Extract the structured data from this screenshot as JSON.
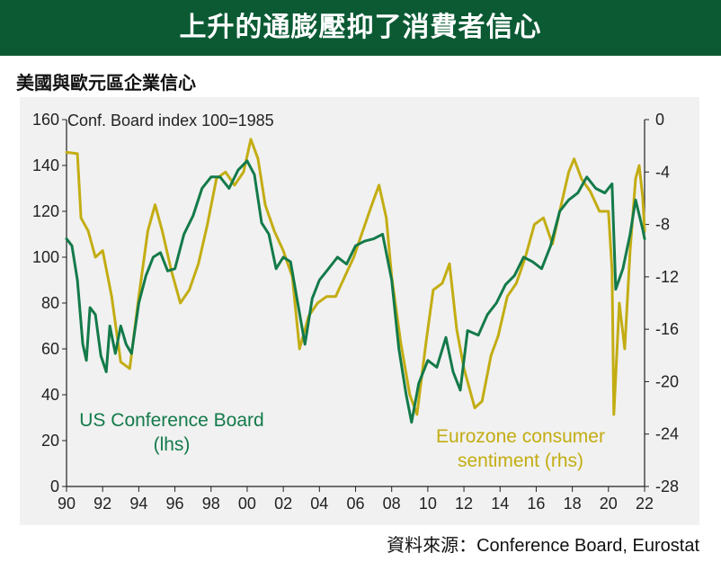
{
  "header": {
    "title": "上升的通膨壓抑了消費者信心"
  },
  "subtitle": "美國與歐元區企業信心",
  "source": "資料來源：Conference Board, Eurostat",
  "chart_data": {
    "type": "line",
    "left_axis_label": "Conf. Board index 100=1985",
    "left_axis": {
      "ylim": [
        0,
        160
      ],
      "ticks": [
        0,
        20,
        40,
        60,
        80,
        100,
        120,
        140,
        160
      ]
    },
    "right_axis": {
      "ylim": [
        -28,
        0
      ],
      "ticks": [
        0,
        -4,
        -8,
        -12,
        -16,
        -20,
        -24,
        -28
      ]
    },
    "x_axis": {
      "xlim": [
        1990,
        2022
      ],
      "ticks": [
        "90",
        "92",
        "94",
        "96",
        "98",
        "00",
        "02",
        "04",
        "06",
        "08",
        "10",
        "12",
        "14",
        "16",
        "18",
        "20",
        "22"
      ]
    },
    "series": [
      {
        "name": "US Conference Board (lhs)",
        "label_lines": [
          "US Conference Board",
          "(lhs)"
        ],
        "axis": "left",
        "color": "#137a4a",
        "points": [
          [
            1990,
            108
          ],
          [
            1990.3,
            105
          ],
          [
            1990.6,
            90
          ],
          [
            1990.9,
            62
          ],
          [
            1991.1,
            55
          ],
          [
            1991.3,
            78
          ],
          [
            1991.6,
            75
          ],
          [
            1991.9,
            57
          ],
          [
            1992.2,
            50
          ],
          [
            1992.4,
            70
          ],
          [
            1992.7,
            58
          ],
          [
            1993.0,
            70
          ],
          [
            1993.3,
            62
          ],
          [
            1993.6,
            58
          ],
          [
            1994.0,
            80
          ],
          [
            1994.4,
            92
          ],
          [
            1994.8,
            100
          ],
          [
            1995.2,
            102
          ],
          [
            1995.6,
            94
          ],
          [
            1996.0,
            95
          ],
          [
            1996.5,
            110
          ],
          [
            1997.0,
            118
          ],
          [
            1997.5,
            130
          ],
          [
            1998.0,
            135
          ],
          [
            1998.5,
            135
          ],
          [
            1999.0,
            130
          ],
          [
            1999.5,
            138
          ],
          [
            2000.0,
            142
          ],
          [
            2000.4,
            136
          ],
          [
            2000.8,
            115
          ],
          [
            2001.2,
            110
          ],
          [
            2001.6,
            95
          ],
          [
            2002.0,
            100
          ],
          [
            2002.4,
            98
          ],
          [
            2002.8,
            80
          ],
          [
            2003.2,
            62
          ],
          [
            2003.6,
            82
          ],
          [
            2004.0,
            90
          ],
          [
            2004.5,
            95
          ],
          [
            2005.0,
            100
          ],
          [
            2005.5,
            97
          ],
          [
            2006.0,
            105
          ],
          [
            2006.5,
            107
          ],
          [
            2007.0,
            108
          ],
          [
            2007.5,
            110
          ],
          [
            2008.0,
            90
          ],
          [
            2008.4,
            60
          ],
          [
            2008.8,
            40
          ],
          [
            2009.1,
            28
          ],
          [
            2009.5,
            45
          ],
          [
            2010.0,
            55
          ],
          [
            2010.5,
            52
          ],
          [
            2011.0,
            65
          ],
          [
            2011.4,
            50
          ],
          [
            2011.8,
            42
          ],
          [
            2012.2,
            68
          ],
          [
            2012.8,
            66
          ],
          [
            2013.3,
            75
          ],
          [
            2013.8,
            80
          ],
          [
            2014.3,
            88
          ],
          [
            2014.8,
            92
          ],
          [
            2015.3,
            100
          ],
          [
            2015.8,
            98
          ],
          [
            2016.3,
            95
          ],
          [
            2016.8,
            105
          ],
          [
            2017.3,
            120
          ],
          [
            2017.8,
            125
          ],
          [
            2018.3,
            128
          ],
          [
            2018.8,
            135
          ],
          [
            2019.3,
            130
          ],
          [
            2019.8,
            128
          ],
          [
            2020.2,
            132
          ],
          [
            2020.4,
            86
          ],
          [
            2020.8,
            95
          ],
          [
            2021.2,
            110
          ],
          [
            2021.5,
            125
          ],
          [
            2021.9,
            112
          ],
          [
            2022.0,
            108
          ]
        ]
      },
      {
        "name": "Eurozone consumer sentiment (rhs)",
        "label_lines": [
          "Eurozone consumer",
          "sentiment (rhs)"
        ],
        "axis": "right",
        "color": "#c3ad13",
        "points": [
          [
            1990,
            -2.5
          ],
          [
            1990.6,
            -2.6
          ],
          [
            1990.8,
            -7.5
          ],
          [
            1991.2,
            -8.5
          ],
          [
            1991.6,
            -10.5
          ],
          [
            1992.0,
            -10.0
          ],
          [
            1992.5,
            -13.5
          ],
          [
            1993.0,
            -18.5
          ],
          [
            1993.5,
            -19.0
          ],
          [
            1994.0,
            -13.5
          ],
          [
            1994.5,
            -8.5
          ],
          [
            1994.9,
            -6.5
          ],
          [
            1995.3,
            -8.5
          ],
          [
            1995.8,
            -11.5
          ],
          [
            1996.3,
            -14.0
          ],
          [
            1996.8,
            -13.0
          ],
          [
            1997.3,
            -11.0
          ],
          [
            1997.8,
            -8.0
          ],
          [
            1998.3,
            -4.5
          ],
          [
            1998.8,
            -4.0
          ],
          [
            1999.3,
            -5.0
          ],
          [
            1999.8,
            -4.0
          ],
          [
            2000.2,
            -1.5
          ],
          [
            2000.6,
            -3.0
          ],
          [
            2001.0,
            -6.5
          ],
          [
            2001.5,
            -8.5
          ],
          [
            2002.0,
            -10.0
          ],
          [
            2002.5,
            -12.0
          ],
          [
            2002.9,
            -17.5
          ],
          [
            2003.4,
            -15.0
          ],
          [
            2003.9,
            -14.0
          ],
          [
            2004.4,
            -13.5
          ],
          [
            2004.9,
            -13.5
          ],
          [
            2005.4,
            -12.0
          ],
          [
            2005.9,
            -10.5
          ],
          [
            2006.4,
            -8.5
          ],
          [
            2006.9,
            -6.5
          ],
          [
            2007.3,
            -5.0
          ],
          [
            2007.7,
            -7.5
          ],
          [
            2008.0,
            -12.0
          ],
          [
            2008.5,
            -17.0
          ],
          [
            2009.0,
            -21.0
          ],
          [
            2009.4,
            -22.5
          ],
          [
            2009.9,
            -17.0
          ],
          [
            2010.3,
            -13.0
          ],
          [
            2010.8,
            -12.5
          ],
          [
            2011.2,
            -11.0
          ],
          [
            2011.6,
            -16.0
          ],
          [
            2012.0,
            -19.0
          ],
          [
            2012.6,
            -22.0
          ],
          [
            2013.0,
            -21.5
          ],
          [
            2013.5,
            -18.0
          ],
          [
            2013.9,
            -16.5
          ],
          [
            2014.4,
            -13.5
          ],
          [
            2014.9,
            -12.5
          ],
          [
            2015.4,
            -10.5
          ],
          [
            2015.9,
            -8.0
          ],
          [
            2016.4,
            -7.5
          ],
          [
            2016.9,
            -9.5
          ],
          [
            2017.3,
            -7.0
          ],
          [
            2017.8,
            -4.0
          ],
          [
            2018.1,
            -3.0
          ],
          [
            2018.5,
            -4.5
          ],
          [
            2019.0,
            -5.5
          ],
          [
            2019.5,
            -7.0
          ],
          [
            2020.0,
            -7.0
          ],
          [
            2020.2,
            -11.5
          ],
          [
            2020.3,
            -22.5
          ],
          [
            2020.6,
            -14.0
          ],
          [
            2020.9,
            -17.5
          ],
          [
            2021.2,
            -10.0
          ],
          [
            2021.5,
            -4.5
          ],
          [
            2021.7,
            -3.5
          ],
          [
            2021.9,
            -6.0
          ],
          [
            2022.0,
            -8.5
          ]
        ]
      }
    ],
    "grid": false,
    "legend": "inline annotations"
  }
}
